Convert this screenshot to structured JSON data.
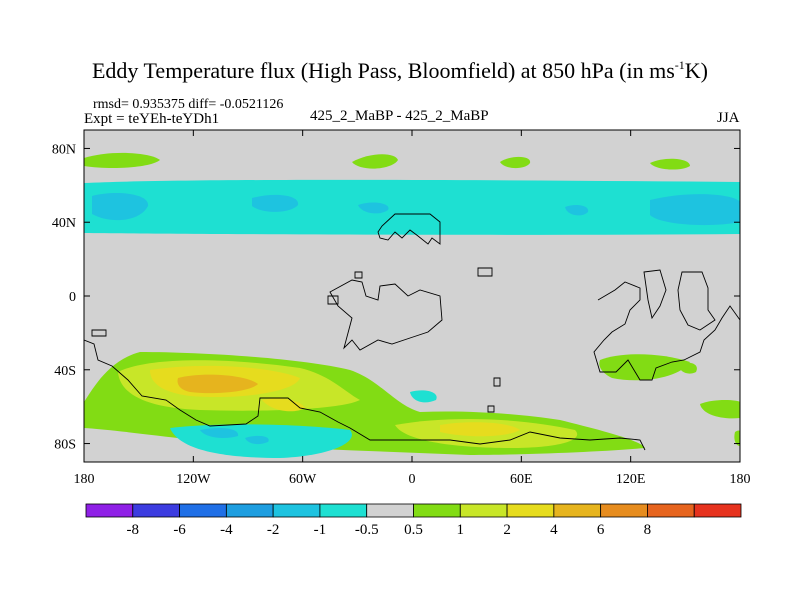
{
  "title_main": "Eddy Temperature flux (High Pass, Bloomfield) at 850 hPa (in ms",
  "title_sup": "-1",
  "title_end": "K)",
  "stats_line": "rmsd= 0.935375 diff= -0.0521126",
  "expt_line": "Expt = teYEh-teYDh1",
  "case_line": "425_2_MaBP - 425_2_MaBP",
  "season": "JJA",
  "colors": {
    "land_gray": "#d2d2d2",
    "outline": "#000000",
    "bins": [
      "#8f20e6",
      "#3c3ce0",
      "#1f6fe6",
      "#1e9ee0",
      "#1ec3e0",
      "#1ee0d2",
      "#d2d2d2",
      "#82dc14",
      "#c8e628",
      "#e6dc1e",
      "#e6b41e",
      "#e68c1e",
      "#e6641e",
      "#e6321e"
    ]
  },
  "chart_data": {
    "type": "heatmap",
    "title": "Eddy Temperature flux (High Pass, Bloomfield) at 850 hPa (in ms-1K)",
    "x_ticks": [
      "180",
      "120W",
      "60W",
      "0",
      "60E",
      "120E",
      "180"
    ],
    "x_tick_values": [
      -180,
      -120,
      -60,
      0,
      60,
      120,
      180
    ],
    "y_ticks": [
      "80N",
      "40N",
      "0",
      "40S",
      "80S"
    ],
    "y_tick_values": [
      80,
      40,
      0,
      -40,
      -80
    ],
    "xlim": [
      -180,
      180
    ],
    "ylim": [
      -90,
      90
    ],
    "colorbar_labels": [
      "-8",
      "-6",
      "-4",
      "-2",
      "-1",
      "-0.5",
      "0.5",
      "1",
      "2",
      "4",
      "6",
      "8"
    ],
    "levels": [
      -8,
      -6,
      -4,
      -2,
      -1,
      -0.5,
      0.5,
      1,
      2,
      4,
      6,
      8
    ],
    "regions": [
      {
        "name": "northern-band-blue",
        "level": "-1",
        "lon": [
          -180,
          180
        ],
        "lat": [
          33,
          62
        ]
      },
      {
        "name": "northern-band-core",
        "level": "-2",
        "lon": [
          -180,
          180
        ],
        "lat": [
          38,
          54
        ]
      },
      {
        "name": "northern-green-patches",
        "level": "0.5",
        "lat_center": 72
      },
      {
        "name": "southern-orange-core",
        "level": "4",
        "lon": [
          -125,
          -85
        ],
        "lat": [
          -55,
          -45
        ]
      },
      {
        "name": "southern-yellow-band",
        "level": "1",
        "lon": [
          -170,
          100
        ],
        "lat": [
          -80,
          -30
        ]
      },
      {
        "name": "antarctic-blue",
        "level": "-1",
        "lon": [
          -125,
          -35
        ],
        "lat": [
          -90,
          -70
        ]
      }
    ]
  }
}
